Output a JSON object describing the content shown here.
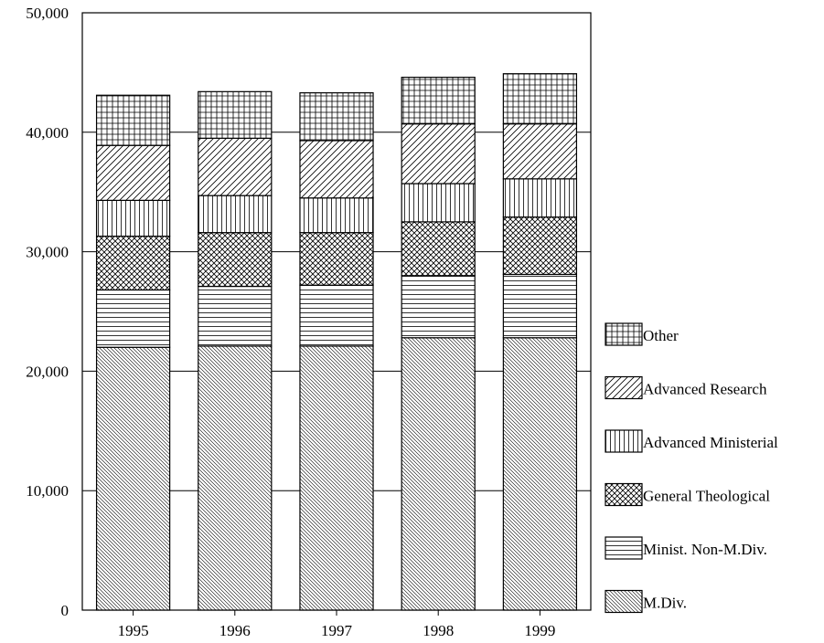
{
  "chart_data": {
    "type": "bar",
    "stacked": true,
    "categories": [
      "1995",
      "1996",
      "1997",
      "1998",
      "1999"
    ],
    "ylim": [
      0,
      50000
    ],
    "yticks": [
      0,
      10000,
      20000,
      30000,
      40000,
      50000
    ],
    "ytick_labels": [
      "0",
      "10,000",
      "20,000",
      "30,000",
      "40,000",
      "50,000"
    ],
    "grid": true,
    "legend_position": "right",
    "series": [
      {
        "name": "M.Div.",
        "pattern": "fine-diagonal",
        "values": [
          22000,
          22100,
          22100,
          22800,
          22800
        ]
      },
      {
        "name": "Minist. Non-M.Div.",
        "pattern": "horizontal",
        "values": [
          4800,
          5000,
          5100,
          5200,
          5300
        ]
      },
      {
        "name": "General Theological",
        "pattern": "crosshatch",
        "values": [
          4500,
          4500,
          4400,
          4500,
          4800
        ]
      },
      {
        "name": "Advanced Ministerial",
        "pattern": "vertical",
        "values": [
          3000,
          3100,
          2900,
          3200,
          3200
        ]
      },
      {
        "name": "Advanced Research",
        "pattern": "diagonal",
        "values": [
          4600,
          4800,
          4800,
          5000,
          4600
        ]
      },
      {
        "name": "Other",
        "pattern": "grid",
        "values": [
          4200,
          3900,
          4000,
          3900,
          4200
        ]
      }
    ],
    "legend_order": [
      "Other",
      "Advanced Research",
      "Advanced Ministerial",
      "General Theological",
      "Minist. Non-M.Div.",
      "M.Div."
    ]
  }
}
